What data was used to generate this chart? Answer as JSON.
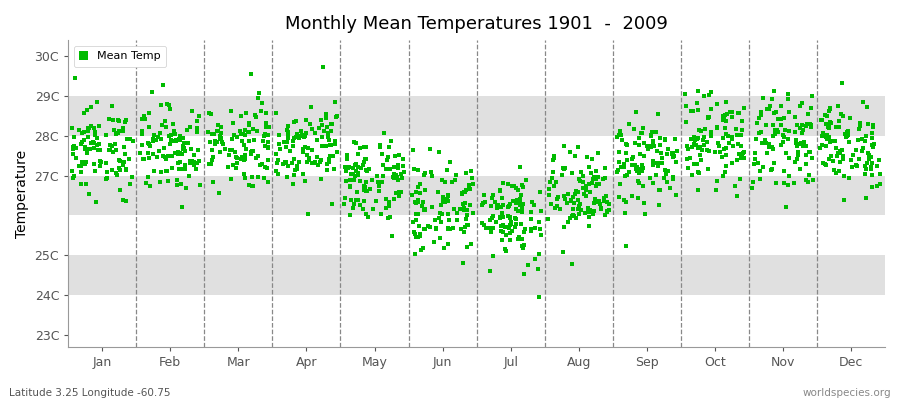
{
  "title": "Monthly Mean Temperatures 1901  -  2009",
  "ylabel": "Temperature",
  "xlabel_labels": [
    "Jan",
    "Feb",
    "Mar",
    "Apr",
    "May",
    "Jun",
    "Jul",
    "Aug",
    "Sep",
    "Oct",
    "Nov",
    "Dec"
  ],
  "ytick_labels": [
    "23C",
    "24C",
    "25C",
    "27C",
    "28C",
    "29C",
    "30C"
  ],
  "ytick_values": [
    23,
    24,
    25,
    27,
    28,
    29,
    30
  ],
  "ylim": [
    22.7,
    30.4
  ],
  "footer_left": "Latitude 3.25 Longitude -60.75",
  "footer_right": "worldspecies.org",
  "legend_label": "Mean Temp",
  "dot_color": "#00bb00",
  "dot_size": 5,
  "background_color": "#ffffff",
  "band_color": "#e0e0e0",
  "n_years": 109,
  "monthly_means": [
    27.65,
    27.7,
    27.8,
    27.8,
    26.9,
    26.2,
    26.0,
    26.5,
    27.3,
    27.9,
    27.9,
    27.75
  ],
  "monthly_stds": [
    0.55,
    0.55,
    0.55,
    0.5,
    0.55,
    0.6,
    0.6,
    0.55,
    0.55,
    0.55,
    0.55,
    0.55
  ]
}
